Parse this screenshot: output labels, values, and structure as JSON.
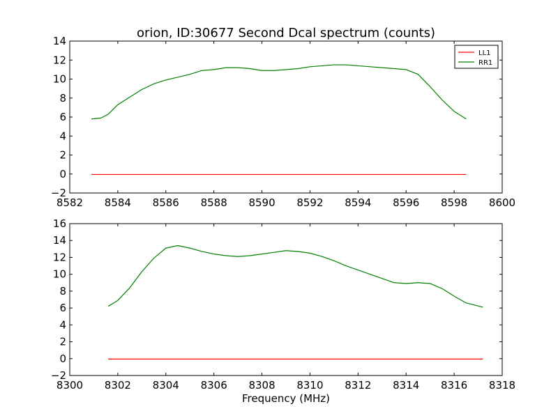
{
  "figure": {
    "title": "orion, ID:30677 Second Dcal spectrum (counts)",
    "xlabel": "Frequency (MHz)"
  },
  "colors": {
    "LL1": "#ff0000",
    "RR1": "#008000",
    "axes": "#000000",
    "background": "#ffffff"
  },
  "chart_data": [
    {
      "type": "line",
      "title": "orion, ID:30677 Second Dcal spectrum (counts)",
      "xlabel": "",
      "ylabel": "",
      "xlim": [
        8582,
        8600
      ],
      "ylim": [
        -2,
        14
      ],
      "xticks": [
        8582,
        8584,
        8586,
        8588,
        8590,
        8592,
        8594,
        8596,
        8598,
        8600
      ],
      "yticks": [
        -2,
        0,
        2,
        4,
        6,
        8,
        10,
        12,
        14
      ],
      "xtick_labels": [
        "8582",
        "8584",
        "8586",
        "8588",
        "8590",
        "8592",
        "8594",
        "8596",
        "8598",
        "8600"
      ],
      "ytick_labels": [
        "−2",
        "0",
        "2",
        "4",
        "6",
        "8",
        "10",
        "12",
        "14"
      ],
      "grid": false,
      "legend": {
        "position": "top-right",
        "entries": [
          "LL1",
          "RR1"
        ]
      },
      "series": [
        {
          "name": "LL1",
          "color": "#ff0000",
          "x": [
            8582.9,
            8584,
            8585,
            8586,
            8587,
            8588,
            8589,
            8590,
            8591,
            8592,
            8593,
            8594,
            8595,
            8596,
            8597,
            8598,
            8598.5
          ],
          "y": [
            -0.05,
            -0.05,
            -0.05,
            -0.05,
            -0.05,
            -0.05,
            -0.05,
            -0.05,
            -0.05,
            -0.05,
            -0.05,
            -0.05,
            -0.05,
            -0.05,
            -0.05,
            -0.05,
            -0.05
          ]
        },
        {
          "name": "RR1",
          "color": "#008000",
          "x": [
            8582.9,
            8583.3,
            8583.6,
            8584,
            8584.5,
            8585,
            8585.5,
            8586,
            8586.5,
            8587,
            8587.5,
            8588,
            8588.5,
            8589,
            8589.5,
            8590,
            8590.5,
            8591,
            8591.5,
            8592,
            8592.5,
            8593,
            8593.5,
            8594,
            8594.5,
            8595,
            8595.5,
            8596,
            8596.5,
            8597,
            8597.5,
            8598,
            8598.5
          ],
          "y": [
            5.8,
            5.9,
            6.3,
            7.3,
            8.1,
            8.9,
            9.5,
            9.9,
            10.2,
            10.5,
            10.9,
            11.0,
            11.2,
            11.2,
            11.1,
            10.9,
            10.9,
            11.0,
            11.1,
            11.3,
            11.4,
            11.5,
            11.5,
            11.4,
            11.3,
            11.2,
            11.1,
            11.0,
            10.5,
            9.2,
            7.8,
            6.6,
            5.8
          ]
        }
      ]
    },
    {
      "type": "line",
      "title": "",
      "xlabel": "Frequency (MHz)",
      "ylabel": "",
      "xlim": [
        8300,
        8318
      ],
      "ylim": [
        -2,
        16
      ],
      "xticks": [
        8300,
        8302,
        8304,
        8306,
        8308,
        8310,
        8312,
        8314,
        8316,
        8318
      ],
      "yticks": [
        -2,
        0,
        2,
        4,
        6,
        8,
        10,
        12,
        14,
        16
      ],
      "xtick_labels": [
        "8300",
        "8302",
        "8304",
        "8306",
        "8308",
        "8310",
        "8312",
        "8314",
        "8316",
        "8318"
      ],
      "ytick_labels": [
        "−2",
        "0",
        "2",
        "4",
        "6",
        "8",
        "10",
        "12",
        "14",
        "16"
      ],
      "grid": false,
      "series": [
        {
          "name": "LL1",
          "color": "#ff0000",
          "x": [
            8301.6,
            8303,
            8304,
            8305,
            8306,
            8307,
            8308,
            8309,
            8310,
            8311,
            8312,
            8313,
            8314,
            8315,
            8316,
            8317.2
          ],
          "y": [
            -0.05,
            -0.05,
            -0.05,
            -0.05,
            -0.05,
            -0.05,
            -0.05,
            -0.05,
            -0.05,
            -0.05,
            -0.05,
            -0.05,
            -0.05,
            -0.05,
            -0.05,
            -0.05
          ]
        },
        {
          "name": "RR1",
          "color": "#008000",
          "x": [
            8301.6,
            8302,
            8302.5,
            8303,
            8303.5,
            8304,
            8304.5,
            8305,
            8305.5,
            8306,
            8306.5,
            8307,
            8307.5,
            8308,
            8308.5,
            8309,
            8309.5,
            8310,
            8310.5,
            8311,
            8311.5,
            8312,
            8312.5,
            8313,
            8313.5,
            8314,
            8314.5,
            8315,
            8315.5,
            8316,
            8316.5,
            8317.2
          ],
          "y": [
            6.2,
            6.9,
            8.4,
            10.3,
            11.9,
            13.1,
            13.4,
            13.1,
            12.7,
            12.4,
            12.2,
            12.1,
            12.2,
            12.4,
            12.6,
            12.8,
            12.7,
            12.5,
            12.1,
            11.6,
            11.0,
            10.5,
            10.0,
            9.5,
            9.0,
            8.9,
            9.0,
            8.9,
            8.3,
            7.4,
            6.6,
            6.1
          ]
        }
      ]
    }
  ]
}
